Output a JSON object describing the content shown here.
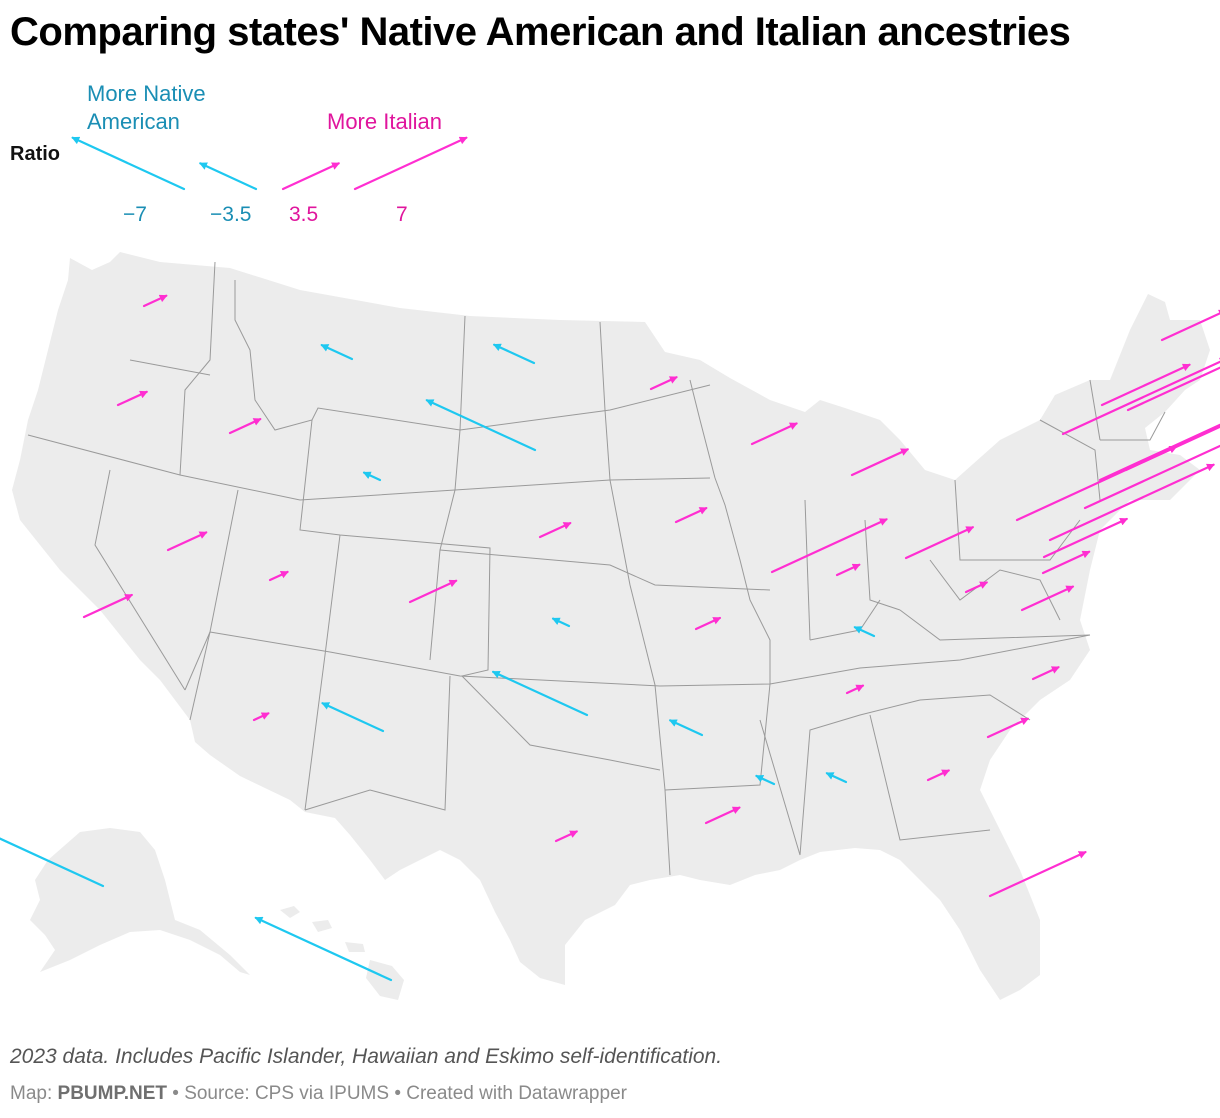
{
  "title": "Comparing states' Native American and Italian ancestries",
  "legend": {
    "title": "Ratio",
    "native_label": "More Native American",
    "italian_label": "More Italian",
    "values": [
      "−7",
      "−3.5",
      "3.5",
      "7"
    ],
    "native_color": "#1ec8f0",
    "italian_color": "#ff2ed1",
    "native_text_color": "#1a8eb4",
    "italian_text_color": "#e0159d"
  },
  "notes": "2023 data. Includes Pacific Islander, Hawaiian and Eskimo self-identification.",
  "credit": {
    "prefix": "Map: ",
    "source_name": "PBUMP.NET",
    "suffix": " • Source: CPS via IPUMS • Created with Datawrapper"
  },
  "map": {
    "land_color": "#ececec",
    "border_color": "#9a9a9a"
  },
  "states": [
    {
      "abbr": "WA",
      "ratio": 1.4
    },
    {
      "abbr": "OR",
      "ratio": 1.8
    },
    {
      "abbr": "CA",
      "ratio": 3.0
    },
    {
      "abbr": "NV",
      "ratio": 2.4
    },
    {
      "abbr": "ID",
      "ratio": 1.9
    },
    {
      "abbr": "MT",
      "ratio": -1.9
    },
    {
      "abbr": "WY",
      "ratio": -1.0
    },
    {
      "abbr": "UT",
      "ratio": 1.1
    },
    {
      "abbr": "AZ",
      "ratio": 0.9
    },
    {
      "abbr": "CO",
      "ratio": 2.9
    },
    {
      "abbr": "NM",
      "ratio": -3.8
    },
    {
      "abbr": "ND",
      "ratio": -2.5
    },
    {
      "abbr": "SD",
      "ratio": -6.8
    },
    {
      "abbr": "NE",
      "ratio": 1.9
    },
    {
      "abbr": "KS",
      "ratio": -1.0
    },
    {
      "abbr": "OK",
      "ratio": -5.9
    },
    {
      "abbr": "TX",
      "ratio": 1.3
    },
    {
      "abbr": "MN",
      "ratio": 1.6
    },
    {
      "abbr": "IA",
      "ratio": 1.9
    },
    {
      "abbr": "MO",
      "ratio": 1.5
    },
    {
      "abbr": "AR",
      "ratio": -2.0
    },
    {
      "abbr": "LA",
      "ratio": 2.1
    },
    {
      "abbr": "WI",
      "ratio": 2.8
    },
    {
      "abbr": "IL",
      "ratio": 7.2
    },
    {
      "abbr": "MI",
      "ratio": 3.5
    },
    {
      "abbr": "IN",
      "ratio": 1.4
    },
    {
      "abbr": "OH",
      "ratio": 4.2
    },
    {
      "abbr": "KY",
      "ratio": -1.2
    },
    {
      "abbr": "TN",
      "ratio": 1.0
    },
    {
      "abbr": "MS",
      "ratio": -1.1
    },
    {
      "abbr": "AL",
      "ratio": -1.2
    },
    {
      "abbr": "GA",
      "ratio": 1.3
    },
    {
      "abbr": "FL",
      "ratio": 6.0
    },
    {
      "abbr": "SC",
      "ratio": 2.5
    },
    {
      "abbr": "NC",
      "ratio": 1.6
    },
    {
      "abbr": "VA",
      "ratio": 3.2
    },
    {
      "abbr": "WV",
      "ratio": 1.3
    },
    {
      "abbr": "MD",
      "ratio": 2.9
    },
    {
      "abbr": "DE",
      "ratio": 5.2
    },
    {
      "abbr": "PA",
      "ratio": 10.0
    },
    {
      "abbr": "NJ",
      "ratio": 12.0
    },
    {
      "abbr": "NY",
      "ratio": 13.0
    },
    {
      "abbr": "CT",
      "ratio": 14.0
    },
    {
      "abbr": "RI",
      "ratio": 15.0
    },
    {
      "abbr": "MA",
      "ratio": 11.0
    },
    {
      "abbr": "VT",
      "ratio": 5.5
    },
    {
      "abbr": "NH",
      "ratio": 10.5
    },
    {
      "abbr": "ME",
      "ratio": 4.0
    },
    {
      "abbr": "AK",
      "ratio": -7.0
    },
    {
      "abbr": "HI",
      "ratio": -8.5
    }
  ]
}
